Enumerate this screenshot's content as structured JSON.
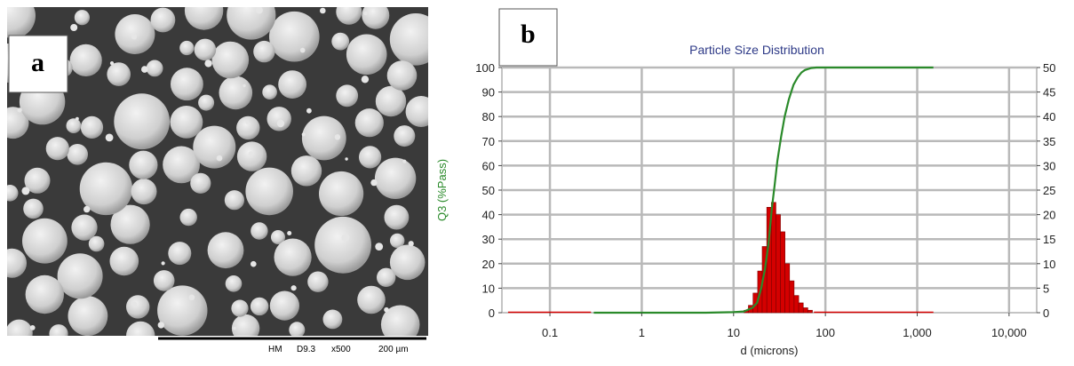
{
  "panel_a": {
    "label": "a",
    "sem_info": {
      "detector": "HM",
      "working_distance": "D9.3",
      "magnification": "x500",
      "scale": "200 µm"
    },
    "colors": {
      "background": "#3a3a3a",
      "particle": "#d6d6d6",
      "info_bar": "#ffffff"
    }
  },
  "chart_data": {
    "type": "bar",
    "label": "b",
    "title": "Particle Size Distribution",
    "xlabel": "d (microns)",
    "ylabel": "Q3 (%Pass)",
    "x_scale": "log",
    "xlim": [
      0.03,
      20000
    ],
    "ylim": [
      0,
      100
    ],
    "y2lim": [
      0,
      50
    ],
    "grid": true,
    "x_ticks": [
      {
        "value": 0.1,
        "label": "0.1"
      },
      {
        "value": 1,
        "label": "1"
      },
      {
        "value": 10,
        "label": "10"
      },
      {
        "value": 100,
        "label": "100"
      },
      {
        "value": 1000,
        "label": "1,000"
      },
      {
        "value": 10000,
        "label": "10,000"
      }
    ],
    "y_ticks": [
      0,
      10,
      20,
      30,
      40,
      50,
      60,
      70,
      80,
      90,
      100
    ],
    "y2_ticks": [
      0,
      5,
      10,
      15,
      20,
      25,
      30,
      35,
      40,
      45,
      50
    ],
    "series": [
      {
        "kind": "bar",
        "axis": "right",
        "color": "#d40000",
        "bins": [
          {
            "x0": 13.0,
            "x1": 14.5,
            "value": 0.5
          },
          {
            "x0": 14.5,
            "x1": 16.3,
            "value": 1.5
          },
          {
            "x0": 16.3,
            "x1": 18.3,
            "value": 4
          },
          {
            "x0": 18.3,
            "x1": 20.5,
            "value": 8.5
          },
          {
            "x0": 20.5,
            "x1": 23.0,
            "value": 13.5
          },
          {
            "x0": 23.0,
            "x1": 25.8,
            "value": 21.5
          },
          {
            "x0": 25.8,
            "x1": 28.9,
            "value": 22.5
          },
          {
            "x0": 28.9,
            "x1": 32.4,
            "value": 20
          },
          {
            "x0": 32.4,
            "x1": 36.3,
            "value": 16.5
          },
          {
            "x0": 36.3,
            "x1": 40.7,
            "value": 10
          },
          {
            "x0": 40.7,
            "x1": 45.6,
            "value": 6.5
          },
          {
            "x0": 45.6,
            "x1": 51.2,
            "value": 3.5
          },
          {
            "x0": 51.2,
            "x1": 57.4,
            "value": 2
          },
          {
            "x0": 57.4,
            "x1": 64.4,
            "value": 1
          },
          {
            "x0": 64.4,
            "x1": 72.2,
            "value": 0.5
          }
        ],
        "baseline_ranges": [
          [
            0.035,
            0.28
          ],
          [
            75,
            1500
          ]
        ]
      },
      {
        "kind": "line",
        "axis": "left",
        "color": "#2a8a2a",
        "x": [
          0.3,
          1,
          5,
          10,
          13,
          16,
          18,
          20,
          22,
          24,
          26,
          28,
          30,
          33,
          36,
          40,
          45,
          50,
          55,
          60,
          70,
          80,
          90,
          100,
          200,
          1000,
          1500
        ],
        "values": [
          0,
          0,
          0,
          0.2,
          0.5,
          2,
          4,
          10,
          18,
          28,
          42,
          52,
          62,
          72,
          80,
          87,
          93,
          96,
          98,
          99,
          99.8,
          100,
          100,
          100,
          100,
          100,
          100
        ]
      }
    ]
  }
}
